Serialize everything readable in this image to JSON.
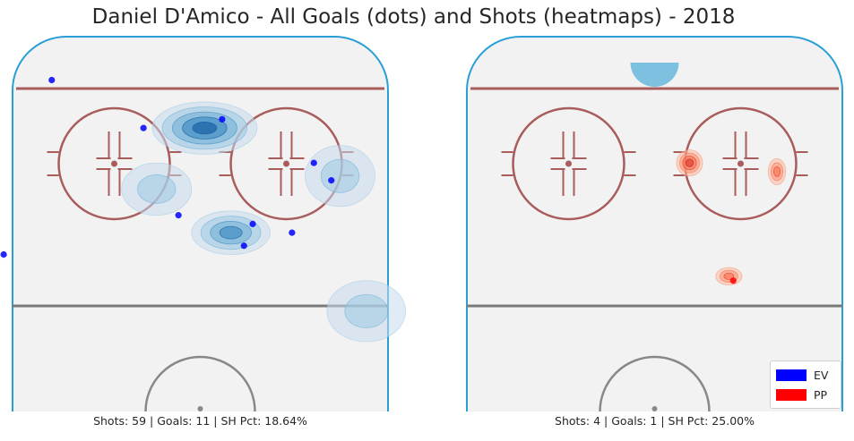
{
  "chart_data": [
    {
      "type": "scatter",
      "title": "Daniel D'Amico - All Goals (dots) and Shots (heatmaps) - 2018",
      "panel": "EV",
      "caption": "Shots: 59 | Goals: 11 | SH Pct: 18.64%",
      "color": "#0000ff",
      "heatmap_color": "Blues",
      "goals": [
        {
          "x": -34,
          "y": 76
        },
        {
          "x": -13,
          "y": 65
        },
        {
          "x": -45,
          "y": 36
        },
        {
          "x": -52,
          "y": 41
        },
        {
          "x": 5,
          "y": 67
        },
        {
          "x": 26,
          "y": 57
        },
        {
          "x": 30,
          "y": 53
        },
        {
          "x": 12,
          "y": 43
        },
        {
          "x": 10,
          "y": 38
        },
        {
          "x": 21,
          "y": 41
        },
        {
          "x": -5,
          "y": 45
        }
      ],
      "shot_density": [
        {
          "x": 1,
          "y": 65,
          "rx": 12,
          "ry": 6,
          "level": 4
        },
        {
          "x": -10,
          "y": 51,
          "rx": 8,
          "ry": 6,
          "level": 1
        },
        {
          "x": 7,
          "y": 41,
          "rx": 9,
          "ry": 5,
          "level": 3
        },
        {
          "x": 32,
          "y": 54,
          "rx": 8,
          "ry": 7,
          "level": 1
        },
        {
          "x": 38,
          "y": 23,
          "rx": 9,
          "ry": 7,
          "level": 1
        }
      ]
    },
    {
      "type": "scatter",
      "panel": "PP",
      "caption": "Shots: 4 | Goals: 1 | SH Pct: 25.00%",
      "color": "#ff0000",
      "heatmap_color": "Reds",
      "goals": [
        {
          "x": 18,
          "y": 30
        }
      ],
      "shot_density": [
        {
          "x": 8,
          "y": 57,
          "rx": 3,
          "ry": 3,
          "level": 3
        },
        {
          "x": 28,
          "y": 55,
          "rx": 2,
          "ry": 3,
          "level": 2
        },
        {
          "x": 17,
          "y": 31,
          "rx": 3,
          "ry": 2,
          "level": 2
        }
      ],
      "zone_marker": {
        "x": 0,
        "y": 80,
        "color": "#7ec0e0"
      }
    }
  ],
  "legend": {
    "placement": "bottom-right",
    "entries": [
      {
        "label": "EV",
        "color": "#0000ff"
      },
      {
        "label": "PP",
        "color": "#ff0000"
      }
    ]
  },
  "colors": {
    "board": "#2a9fd6",
    "ice": "#f2f2f2",
    "goal_line": "#a95c5c",
    "circle": "#a95c5c",
    "blue_line": "#7a7a7a"
  }
}
